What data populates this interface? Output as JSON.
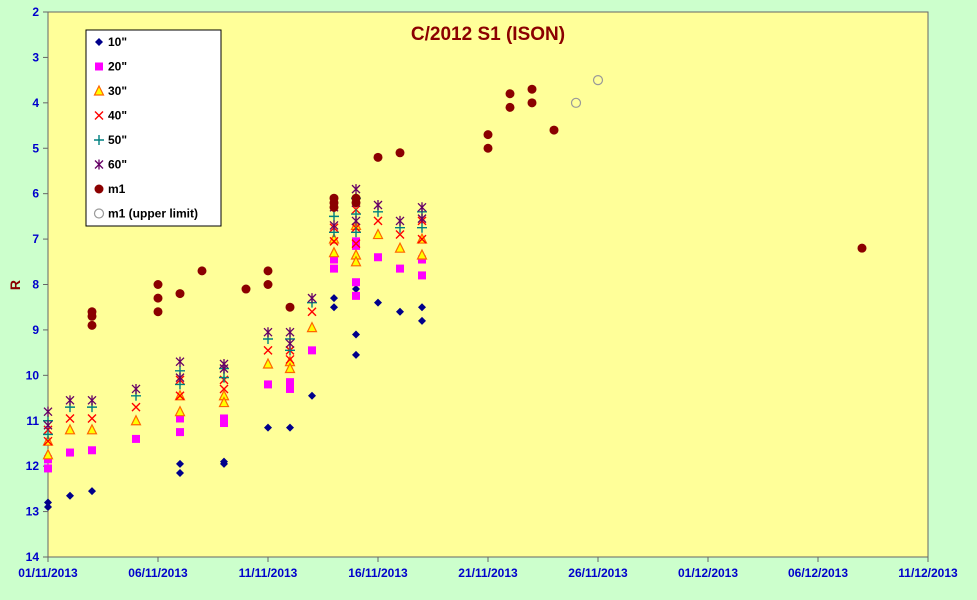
{
  "chart_data": {
    "type": "scatter",
    "title": "C/2012 S1 (ISON)",
    "xlabel": "",
    "ylabel": "R",
    "xlim": [
      "01/11/2013",
      "11/12/2013"
    ],
    "ylim": [
      14,
      2
    ],
    "y_inverted": true,
    "x_tick_labels": [
      "01/11/2013",
      "06/11/2013",
      "11/11/2013",
      "16/11/2013",
      "21/11/2013",
      "26/11/2013",
      "01/12/2013",
      "06/12/2013",
      "11/12/2013"
    ],
    "y_tick_labels": [
      "2",
      "3",
      "4",
      "5",
      "6",
      "7",
      "8",
      "9",
      "10",
      "11",
      "12",
      "13",
      "14"
    ],
    "grid": false,
    "legend_position": "top-left",
    "colors": {
      "figure_background": "#ccffcc",
      "plot_background": "#ffff99",
      "title": "#8b0000",
      "ticks": "#0000cc"
    },
    "series": [
      {
        "name": "10\"",
        "marker": "diamond",
        "color": "#00008b",
        "x": [
          "01/11/2013",
          "01/11/2013",
          "02/11/2013",
          "03/11/2013",
          "07/11/2013",
          "07/11/2013",
          "09/11/2013",
          "09/11/2013",
          "11/11/2013",
          "12/11/2013",
          "13/11/2013",
          "14/11/2013",
          "14/11/2013",
          "15/11/2013",
          "15/11/2013",
          "15/11/2013",
          "16/11/2013",
          "17/11/2013",
          "18/11/2013",
          "18/11/2013"
        ],
        "y": [
          12.8,
          12.9,
          12.65,
          12.55,
          11.95,
          12.15,
          11.9,
          11.95,
          11.15,
          11.15,
          10.45,
          8.3,
          8.5,
          8.1,
          9.1,
          9.55,
          8.4,
          8.6,
          8.5,
          8.8
        ]
      },
      {
        "name": "20\"",
        "marker": "square",
        "color": "#ff00ff",
        "x": [
          "01/11/2013",
          "01/11/2013",
          "02/11/2013",
          "03/11/2013",
          "05/11/2013",
          "07/11/2013",
          "07/11/2013",
          "09/11/2013",
          "09/11/2013",
          "11/11/2013",
          "12/11/2013",
          "12/11/2013",
          "13/11/2013",
          "14/11/2013",
          "14/11/2013",
          "15/11/2013",
          "15/11/2013",
          "15/11/2013",
          "15/11/2013",
          "16/11/2013",
          "17/11/2013",
          "18/11/2013",
          "18/11/2013"
        ],
        "y": [
          11.85,
          12.05,
          11.7,
          11.65,
          11.4,
          10.95,
          11.25,
          10.95,
          11.05,
          10.2,
          10.15,
          10.3,
          9.45,
          7.45,
          7.65,
          7.05,
          7.15,
          7.95,
          8.25,
          7.4,
          7.65,
          7.45,
          7.8
        ]
      },
      {
        "name": "30\"",
        "marker": "triangle",
        "color": "#ff6600",
        "x": [
          "01/11/2013",
          "01/11/2013",
          "02/11/2013",
          "03/11/2013",
          "05/11/2013",
          "07/11/2013",
          "07/11/2013",
          "09/11/2013",
          "09/11/2013",
          "11/11/2013",
          "12/11/2013",
          "12/11/2013",
          "13/11/2013",
          "14/11/2013",
          "14/11/2013",
          "15/11/2013",
          "15/11/2013",
          "15/11/2013",
          "16/11/2013",
          "17/11/2013",
          "18/11/2013",
          "18/11/2013"
        ],
        "y": [
          11.45,
          11.75,
          11.2,
          11.2,
          11.0,
          10.45,
          10.8,
          10.45,
          10.6,
          9.75,
          9.7,
          9.85,
          8.95,
          7.0,
          7.3,
          6.7,
          7.35,
          7.5,
          6.9,
          7.2,
          7.0,
          7.35
        ]
      },
      {
        "name": "40\"",
        "marker": "x",
        "color": "#ff0000",
        "x": [
          "01/11/2013",
          "01/11/2013",
          "02/11/2013",
          "03/11/2013",
          "05/11/2013",
          "07/11/2013",
          "07/11/2013",
          "09/11/2013",
          "09/11/2013",
          "11/11/2013",
          "12/11/2013",
          "12/11/2013",
          "13/11/2013",
          "14/11/2013",
          "14/11/2013",
          "15/11/2013",
          "15/11/2013",
          "15/11/2013",
          "16/11/2013",
          "17/11/2013",
          "18/11/2013",
          "18/11/2013"
        ],
        "y": [
          11.2,
          11.45,
          10.95,
          10.95,
          10.7,
          10.1,
          10.45,
          10.1,
          10.3,
          9.45,
          9.45,
          9.65,
          8.6,
          6.75,
          7.05,
          6.35,
          6.75,
          7.1,
          6.6,
          6.9,
          6.6,
          7.0
        ]
      },
      {
        "name": "50\"",
        "marker": "plus",
        "color": "#008080",
        "x": [
          "01/11/2013",
          "01/11/2013",
          "02/11/2013",
          "03/11/2013",
          "05/11/2013",
          "07/11/2013",
          "07/11/2013",
          "09/11/2013",
          "09/11/2013",
          "11/11/2013",
          "12/11/2013",
          "12/11/2013",
          "13/11/2013",
          "14/11/2013",
          "14/11/2013",
          "15/11/2013",
          "15/11/2013",
          "15/11/2013",
          "16/11/2013",
          "17/11/2013",
          "18/11/2013",
          "18/11/2013"
        ],
        "y": [
          11.0,
          11.3,
          10.7,
          10.7,
          10.45,
          9.9,
          10.2,
          9.85,
          10.05,
          9.2,
          9.2,
          9.45,
          8.4,
          6.5,
          6.85,
          6.1,
          6.45,
          6.85,
          6.4,
          6.75,
          6.4,
          6.75
        ]
      },
      {
        "name": "60\"",
        "marker": "star",
        "color": "#660066",
        "x": [
          "01/11/2013",
          "01/11/2013",
          "02/11/2013",
          "03/11/2013",
          "05/11/2013",
          "07/11/2013",
          "07/11/2013",
          "09/11/2013",
          "09/11/2013",
          "11/11/2013",
          "12/11/2013",
          "12/11/2013",
          "13/11/2013",
          "14/11/2013",
          "14/11/2013",
          "15/11/2013",
          "15/11/2013",
          "15/11/2013",
          "16/11/2013",
          "17/11/2013",
          "18/11/2013",
          "18/11/2013"
        ],
        "y": [
          10.8,
          11.1,
          10.55,
          10.55,
          10.3,
          9.7,
          10.05,
          9.75,
          9.85,
          9.05,
          9.05,
          9.3,
          8.3,
          6.3,
          6.7,
          5.9,
          6.2,
          6.6,
          6.25,
          6.6,
          6.3,
          6.55
        ]
      },
      {
        "name": "m1",
        "marker": "circle",
        "color": "#8b0000",
        "x": [
          "03/11/2013",
          "03/11/2013",
          "03/11/2013",
          "06/11/2013",
          "06/11/2013",
          "06/11/2013",
          "07/11/2013",
          "08/11/2013",
          "10/11/2013",
          "11/11/2013",
          "11/11/2013",
          "12/11/2013",
          "14/11/2013",
          "14/11/2013",
          "14/11/2013",
          "15/11/2013",
          "15/11/2013",
          "16/11/2013",
          "17/11/2013",
          "21/11/2013",
          "21/11/2013",
          "22/11/2013",
          "22/11/2013",
          "23/11/2013",
          "23/11/2013",
          "24/11/2013",
          "08/12/2013"
        ],
        "y": [
          8.6,
          8.7,
          8.9,
          8.0,
          8.3,
          8.6,
          8.2,
          7.7,
          8.1,
          7.7,
          8.0,
          8.5,
          6.1,
          6.2,
          6.3,
          6.1,
          6.2,
          5.2,
          5.1,
          4.7,
          5.0,
          3.8,
          4.1,
          3.7,
          4.0,
          4.6,
          7.2
        ]
      },
      {
        "name": "m1 (upper limit)",
        "marker": "open-circle",
        "color": "#999999",
        "x": [
          "25/11/2013",
          "26/11/2013"
        ],
        "y": [
          4.0,
          3.5
        ]
      }
    ]
  }
}
